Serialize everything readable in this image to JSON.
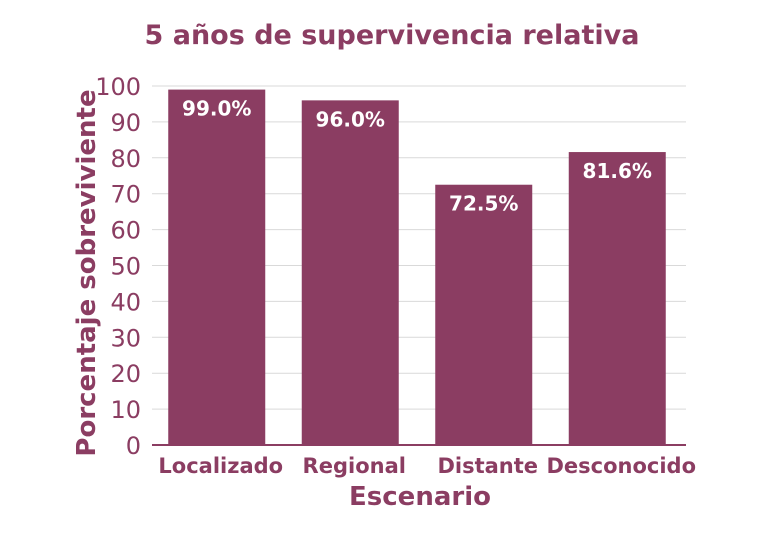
{
  "colors": {
    "accent": "#8b3d62",
    "text": "#8b3d62",
    "bar_label": "#ffffff",
    "grid": "#d9d9d9"
  },
  "chart_data": {
    "type": "bar",
    "title": "5 años de supervivencia relativa",
    "xlabel": "Escenario",
    "ylabel": "Porcentaje sobreviviente",
    "categories": [
      "Localizado",
      "Regional",
      "Distante",
      "Desconocido"
    ],
    "values": [
      99.0,
      96.0,
      72.5,
      81.6
    ],
    "data_labels": [
      "99.0%",
      "96.0%",
      "72.5%",
      "81.6%"
    ],
    "ylim": [
      0,
      100
    ],
    "yticks": [
      0,
      10,
      20,
      30,
      40,
      50,
      60,
      70,
      80,
      90,
      100
    ],
    "grid": true
  }
}
